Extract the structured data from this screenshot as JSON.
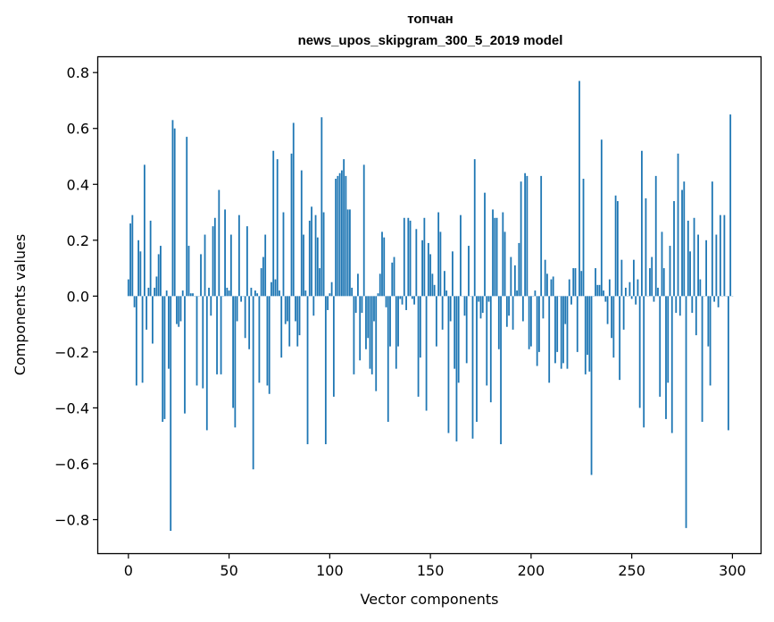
{
  "chart_data": {
    "type": "bar",
    "title": "топчан",
    "subtitle": "news_upos_skipgram_300_5_2019 model",
    "xlabel": "Vector components",
    "ylabel": "Components values",
    "xlim": [
      -15,
      314
    ],
    "ylim": [
      -0.92,
      0.855
    ],
    "xticks": [
      0,
      50,
      100,
      150,
      200,
      250,
      300
    ],
    "xtick_labels": [
      "0",
      "50",
      "100",
      "150",
      "200",
      "250",
      "300"
    ],
    "yticks": [
      -0.8,
      -0.6,
      -0.4,
      -0.2,
      0.0,
      0.2,
      0.4,
      0.6,
      0.8
    ],
    "ytick_labels": [
      "−0.8",
      "−0.6",
      "−0.4",
      "−0.2",
      "0.0",
      "0.2",
      "0.4",
      "0.6",
      "0.8"
    ],
    "grid": false,
    "bar_color": "#1f77b4",
    "values": [
      0.06,
      0.26,
      0.29,
      -0.04,
      -0.32,
      0.2,
      0.16,
      -0.31,
      0.47,
      -0.12,
      0.03,
      0.27,
      -0.17,
      0.03,
      0.07,
      0.15,
      0.18,
      -0.45,
      -0.44,
      0.02,
      -0.26,
      -0.84,
      0.63,
      0.6,
      -0.1,
      -0.11,
      -0.09,
      0.02,
      -0.42,
      0.57,
      0.18,
      0.01,
      0.01,
      0.0,
      -0.32,
      0.0,
      0.15,
      -0.33,
      0.22,
      -0.48,
      0.03,
      -0.07,
      0.25,
      0.28,
      -0.28,
      0.38,
      -0.28,
      0.0,
      0.31,
      0.03,
      0.02,
      0.22,
      -0.4,
      -0.47,
      -0.09,
      0.29,
      -0.02,
      0.0,
      -0.15,
      0.25,
      -0.19,
      0.03,
      -0.62,
      0.02,
      0.01,
      -0.31,
      0.1,
      0.14,
      0.22,
      -0.32,
      -0.35,
      0.05,
      0.52,
      0.06,
      0.49,
      0.02,
      -0.22,
      0.3,
      -0.1,
      -0.09,
      -0.18,
      0.51,
      0.62,
      -0.09,
      -0.18,
      -0.14,
      0.45,
      0.22,
      0.02,
      -0.53,
      0.27,
      0.32,
      -0.07,
      0.29,
      0.21,
      0.1,
      0.64,
      0.3,
      -0.53,
      -0.05,
      0.01,
      0.05,
      -0.36,
      0.42,
      0.43,
      0.44,
      0.45,
      0.49,
      0.43,
      0.31,
      0.31,
      0.03,
      -0.28,
      -0.06,
      0.08,
      -0.23,
      -0.06,
      0.47,
      -0.19,
      -0.15,
      -0.26,
      -0.28,
      -0.09,
      -0.34,
      0.01,
      0.08,
      0.23,
      0.21,
      -0.04,
      -0.45,
      -0.18,
      0.12,
      0.14,
      -0.26,
      -0.18,
      -0.01,
      -0.03,
      0.28,
      -0.05,
      0.28,
      0.27,
      -0.01,
      -0.03,
      0.24,
      -0.36,
      -0.22,
      0.2,
      0.28,
      -0.41,
      0.19,
      0.15,
      0.08,
      0.04,
      -0.18,
      0.3,
      0.23,
      -0.12,
      0.09,
      0.02,
      -0.49,
      -0.09,
      0.16,
      -0.26,
      -0.52,
      -0.31,
      0.29,
      0.0,
      -0.07,
      -0.24,
      0.18,
      0.0,
      -0.51,
      0.49,
      -0.45,
      -0.02,
      -0.08,
      -0.06,
      0.37,
      -0.32,
      -0.02,
      -0.38,
      0.31,
      0.28,
      0.28,
      -0.19,
      -0.53,
      0.3,
      0.23,
      -0.11,
      -0.07,
      0.14,
      -0.12,
      0.11,
      0.02,
      0.19,
      0.41,
      -0.09,
      0.44,
      0.43,
      -0.19,
      -0.18,
      0.0,
      0.02,
      -0.25,
      -0.2,
      0.43,
      -0.08,
      0.13,
      0.08,
      -0.31,
      0.06,
      0.07,
      -0.24,
      -0.2,
      0.0,
      -0.26,
      -0.24,
      -0.1,
      -0.26,
      0.06,
      -0.03,
      0.1,
      0.1,
      -0.2,
      0.77,
      0.09,
      0.42,
      -0.28,
      -0.21,
      -0.27,
      -0.64,
      0.0,
      0.1,
      0.04,
      0.04,
      0.56,
      0.02,
      -0.02,
      -0.1,
      0.06,
      -0.15,
      -0.22,
      0.36,
      0.34,
      -0.3,
      0.13,
      -0.12,
      0.03,
      0.0,
      0.05,
      -0.01,
      0.13,
      -0.03,
      0.06,
      -0.4,
      0.52,
      -0.47,
      0.35,
      0.0,
      0.1,
      0.14,
      -0.02,
      0.43,
      0.03,
      -0.36,
      0.23,
      0.1,
      -0.44,
      -0.31,
      0.18,
      -0.49,
      0.34,
      -0.06,
      0.51,
      -0.07,
      0.38,
      0.41,
      -0.83,
      0.27,
      0.16,
      -0.06,
      0.28,
      -0.14,
      0.22,
      0.06,
      -0.45,
      0.0,
      0.2,
      -0.18,
      -0.32,
      0.41,
      -0.02,
      0.22,
      -0.04,
      0.29,
      0.0,
      0.29,
      0.0,
      -0.48,
      0.65,
      0.0
    ]
  }
}
